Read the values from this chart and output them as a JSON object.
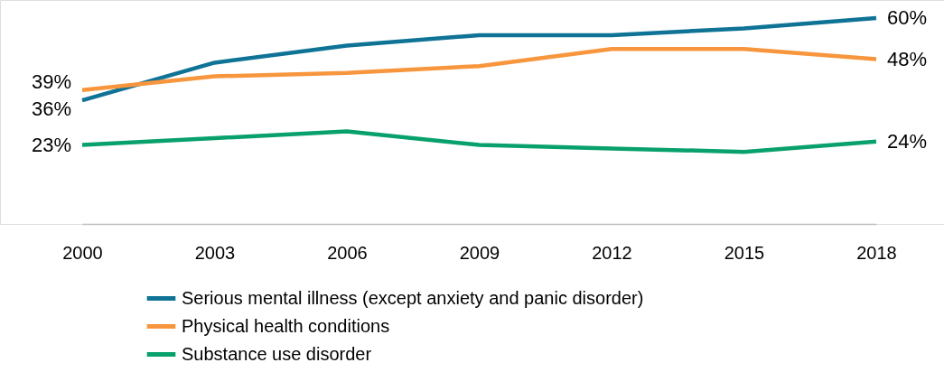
{
  "chart_data": {
    "type": "line",
    "categories": [
      "2000",
      "2003",
      "2006",
      "2009",
      "2012",
      "2015",
      "2018"
    ],
    "tick_labels": "x",
    "grid": false,
    "legend": "bottom",
    "marker": "none",
    "line_style": "solid",
    "series": [
      {
        "name": "Serious mental illness (except anxiety and panic disorder)",
        "color": "#0f7396",
        "values": [
          36,
          47,
          52,
          55,
          55,
          57,
          60
        ],
        "value_labels": [
          "36%",
          null,
          null,
          null,
          null,
          null,
          "60%"
        ]
      },
      {
        "name": "Physical health conditions",
        "color": "#f7963d",
        "values": [
          39,
          43,
          44,
          46,
          51,
          51,
          48
        ],
        "value_labels": [
          "39%",
          null,
          null,
          null,
          null,
          null,
          "48%"
        ]
      },
      {
        "name": "Substance use disorder",
        "color": "#08a06b",
        "values": [
          23,
          25,
          27,
          23,
          22,
          21,
          24
        ],
        "value_labels": [
          "23%",
          null,
          null,
          null,
          null,
          null,
          "24%"
        ]
      }
    ]
  }
}
